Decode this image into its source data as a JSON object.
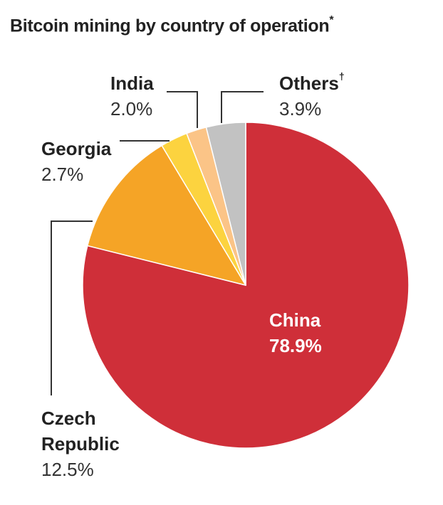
{
  "title": {
    "text": "Bitcoin mining by country of operation",
    "mark": "*"
  },
  "chart_data": {
    "type": "pie",
    "start": "12 o'clock, clockwise",
    "slices": [
      {
        "label": "China",
        "value": 78.9,
        "display": "78.9%",
        "color": "#cf2f39"
      },
      {
        "label": "Czech Republic",
        "value": 12.5,
        "display": "12.5%",
        "color": "#f5a426"
      },
      {
        "label": "Georgia",
        "value": 2.7,
        "display": "2.7%",
        "color": "#fcd33f"
      },
      {
        "label": "India",
        "value": 2.0,
        "display": "2.0%",
        "color": "#fbc487"
      },
      {
        "label": "Others",
        "label_mark": "†",
        "value": 3.9,
        "display": "3.9%",
        "color": "#c2c2c2"
      }
    ],
    "labels": {
      "czech_line1": "Czech",
      "czech_line2": "Republic"
    }
  }
}
